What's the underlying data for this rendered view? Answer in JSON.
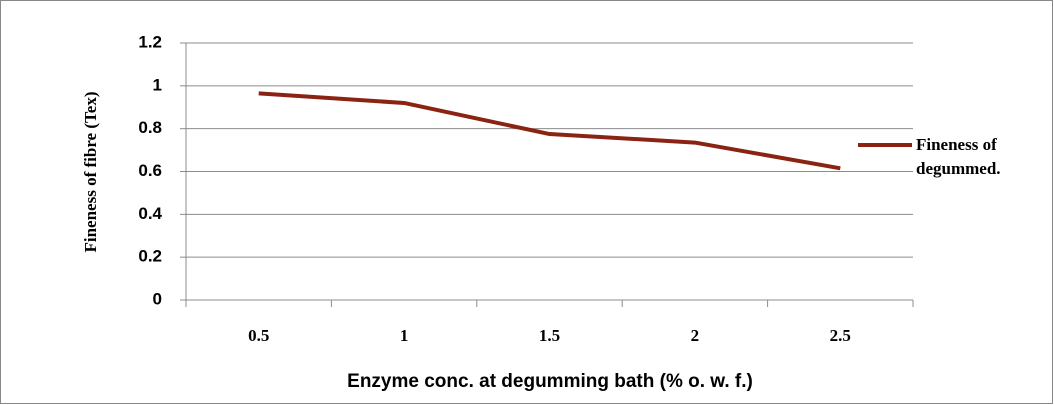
{
  "chart_data": {
    "type": "line",
    "x_label": "Enzyme conc. at degumming bath (% o. w. f.)",
    "y_label": "Fineness of fibre (Tex)",
    "categories": [
      "0.5",
      "1",
      "1.5",
      "2",
      "2.5"
    ],
    "series": [
      {
        "name": "Fineness of degummed.",
        "color": "#8b2313",
        "values": [
          0.965,
          0.92,
          0.775,
          0.735,
          0.615
        ]
      }
    ],
    "ylim": [
      0,
      1.2
    ],
    "yticks": [
      0,
      0.2,
      0.4,
      0.6,
      0.8,
      1,
      1.2
    ],
    "grid": true,
    "legend": "right"
  }
}
